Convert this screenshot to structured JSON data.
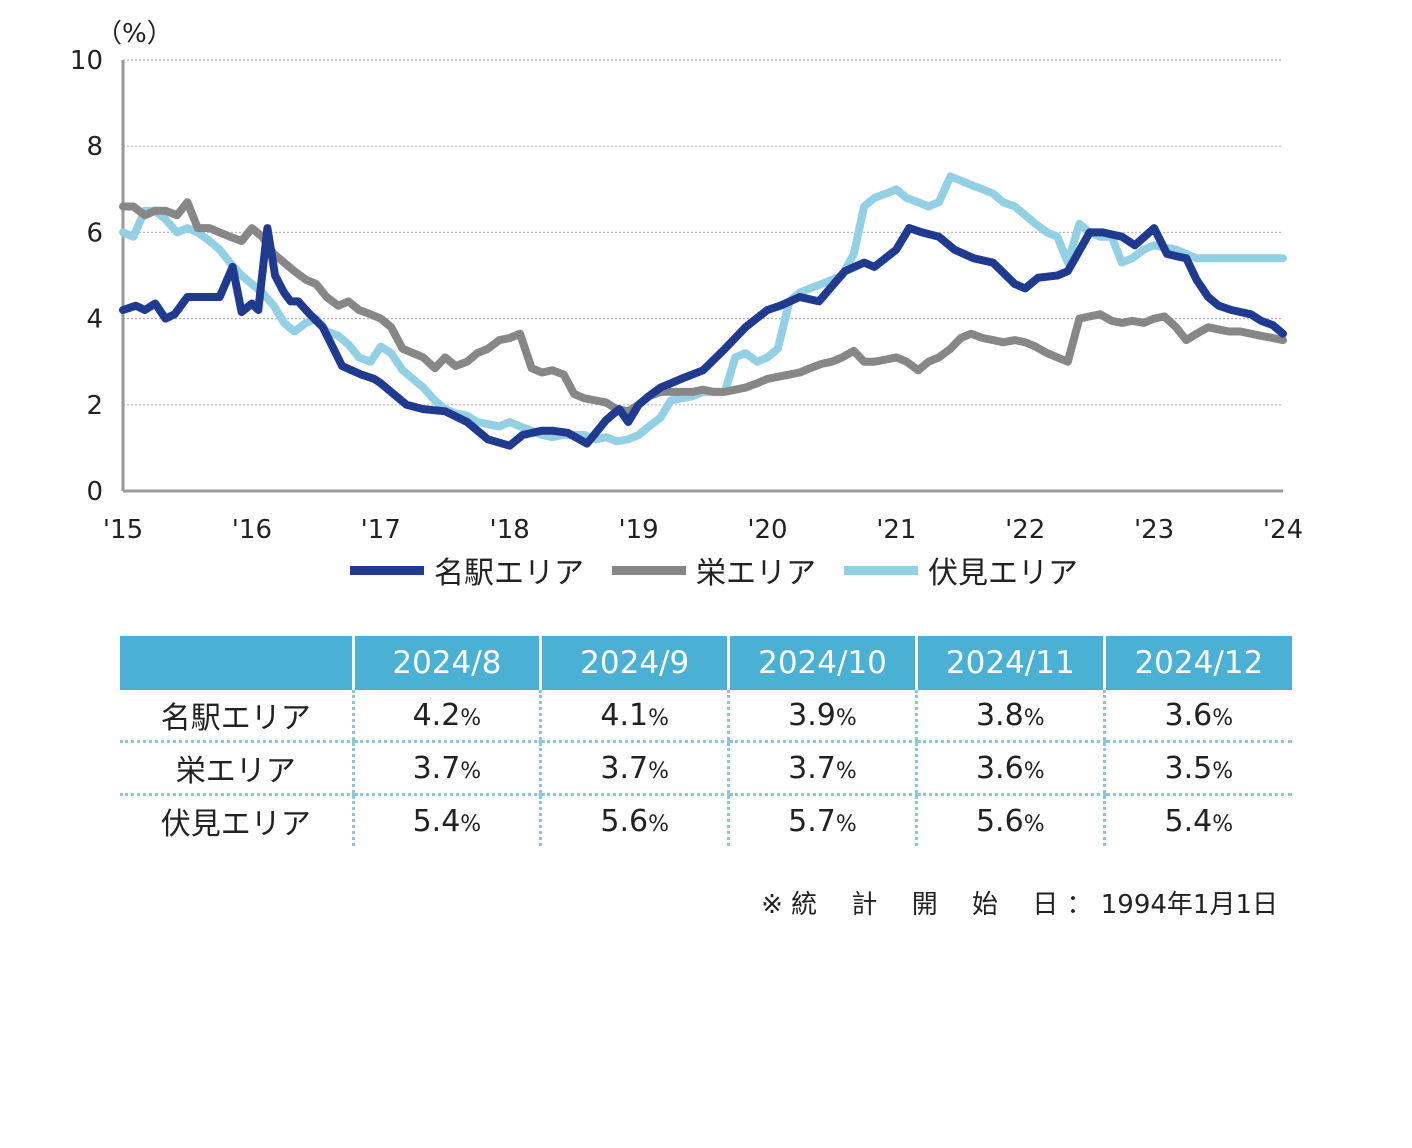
{
  "chart_data": {
    "type": "line",
    "ylabel": "（%）",
    "ylim": [
      0,
      10
    ],
    "yticks": [
      "0",
      "2",
      "4",
      "6",
      "8",
      "10"
    ],
    "xlim": [
      2015,
      2024
    ],
    "xtick_labels": [
      "'15",
      "'16",
      "'17",
      "'18",
      "'19",
      "'20",
      "'21",
      "'22",
      "'23",
      "'24"
    ],
    "grid": "horizontal dotted",
    "legend_position": "bottom-center",
    "series": [
      {
        "name": "名駅エリア",
        "color": "#1f3a8f",
        "x": [
          2015.0,
          2015.1,
          2015.17,
          2015.25,
          2015.33,
          2015.4,
          2015.5,
          2015.6,
          2015.75,
          2015.85,
          2015.92,
          2016.0,
          2016.05,
          2016.12,
          2016.18,
          2016.25,
          2016.3,
          2016.36,
          2016.45,
          2016.55,
          2016.7,
          2016.85,
          2016.95,
          2017.0,
          2017.08,
          2017.2,
          2017.33,
          2017.5,
          2017.67,
          2017.83,
          2018.0,
          2018.1,
          2018.25,
          2018.33,
          2018.45,
          2018.6,
          2018.75,
          2018.85,
          2018.92,
          2019.0,
          2019.08,
          2019.17,
          2019.25,
          2019.33,
          2019.5,
          2019.67,
          2019.83,
          2020.0,
          2020.1,
          2020.25,
          2020.4,
          2020.6,
          2020.75,
          2020.83,
          2021.0,
          2021.1,
          2021.2,
          2021.33,
          2021.45,
          2021.6,
          2021.75,
          2021.92,
          2022.0,
          2022.1,
          2022.25,
          2022.33,
          2022.5,
          2022.6,
          2022.75,
          2022.85,
          2023.0,
          2023.1,
          2023.17,
          2023.25,
          2023.33,
          2023.42,
          2023.5,
          2023.6,
          2023.75,
          2023.83,
          2023.92,
          2024.0
        ],
        "values": [
          4.2,
          4.3,
          4.2,
          4.35,
          4.0,
          4.1,
          4.5,
          4.5,
          4.5,
          5.2,
          4.15,
          4.35,
          4.2,
          6.1,
          5.0,
          4.6,
          4.4,
          4.4,
          4.1,
          3.8,
          2.9,
          2.7,
          2.6,
          2.5,
          2.3,
          2.0,
          1.9,
          1.85,
          1.6,
          1.2,
          1.05,
          1.3,
          1.4,
          1.4,
          1.35,
          1.1,
          1.65,
          1.9,
          1.6,
          2.0,
          2.2,
          2.4,
          2.5,
          2.6,
          2.8,
          3.3,
          3.8,
          4.2,
          4.3,
          4.5,
          4.4,
          5.1,
          5.3,
          5.2,
          5.6,
          6.1,
          6.0,
          5.9,
          5.6,
          5.4,
          5.3,
          4.8,
          4.7,
          4.95,
          5.0,
          5.1,
          6.0,
          6.0,
          5.9,
          5.7,
          6.1,
          5.5,
          5.45,
          5.4,
          4.9,
          4.5,
          4.3,
          4.2,
          4.1,
          3.95,
          3.85,
          3.65
        ]
      },
      {
        "name": "栄エリア",
        "color": "#878787",
        "x": [
          2015.0,
          2015.08,
          2015.17,
          2015.25,
          2015.33,
          2015.42,
          2015.5,
          2015.58,
          2015.67,
          2015.75,
          2015.83,
          2015.92,
          2016.0,
          2016.08,
          2016.17,
          2016.25,
          2016.33,
          2016.42,
          2016.5,
          2016.58,
          2016.67,
          2016.75,
          2016.83,
          2016.92,
          2017.0,
          2017.08,
          2017.17,
          2017.25,
          2017.33,
          2017.42,
          2017.5,
          2017.58,
          2017.67,
          2017.75,
          2017.83,
          2017.92,
          2018.0,
          2018.08,
          2018.17,
          2018.25,
          2018.33,
          2018.42,
          2018.5,
          2018.58,
          2018.67,
          2018.75,
          2018.83,
          2018.92,
          2019.0,
          2019.08,
          2019.17,
          2019.25,
          2019.33,
          2019.42,
          2019.5,
          2019.58,
          2019.67,
          2019.75,
          2019.83,
          2019.92,
          2020.0,
          2020.08,
          2020.17,
          2020.25,
          2020.33,
          2020.42,
          2020.5,
          2020.58,
          2020.67,
          2020.75,
          2020.83,
          2020.92,
          2021.0,
          2021.08,
          2021.17,
          2021.25,
          2021.33,
          2021.42,
          2021.5,
          2021.58,
          2021.67,
          2021.75,
          2021.83,
          2021.92,
          2022.0,
          2022.08,
          2022.17,
          2022.25,
          2022.33,
          2022.42,
          2022.5,
          2022.58,
          2022.67,
          2022.75,
          2022.83,
          2022.92,
          2023.0,
          2023.08,
          2023.17,
          2023.25,
          2023.33,
          2023.42,
          2023.5,
          2023.58,
          2023.67,
          2023.75,
          2023.83,
          2023.92,
          2024.0
        ],
        "values": [
          6.6,
          6.6,
          6.4,
          6.5,
          6.5,
          6.4,
          6.7,
          6.1,
          6.1,
          6.0,
          5.9,
          5.8,
          6.1,
          5.9,
          5.5,
          5.3,
          5.1,
          4.9,
          4.8,
          4.5,
          4.3,
          4.4,
          4.2,
          4.1,
          4.0,
          3.8,
          3.3,
          3.2,
          3.1,
          2.85,
          3.1,
          2.9,
          3.0,
          3.2,
          3.3,
          3.5,
          3.55,
          3.65,
          2.85,
          2.75,
          2.8,
          2.7,
          2.25,
          2.15,
          2.1,
          2.05,
          1.9,
          1.85,
          2.0,
          2.2,
          2.3,
          2.3,
          2.3,
          2.3,
          2.35,
          2.3,
          2.3,
          2.35,
          2.4,
          2.5,
          2.6,
          2.65,
          2.7,
          2.75,
          2.85,
          2.95,
          3.0,
          3.1,
          3.25,
          3.0,
          3.0,
          3.05,
          3.1,
          3.0,
          2.8,
          3.0,
          3.1,
          3.3,
          3.55,
          3.65,
          3.55,
          3.5,
          3.45,
          3.5,
          3.45,
          3.35,
          3.2,
          3.1,
          3.0,
          4.0,
          4.05,
          4.1,
          3.95,
          3.9,
          3.95,
          3.9,
          4.0,
          4.05,
          3.8,
          3.5,
          3.65,
          3.8,
          3.75,
          3.7,
          3.7,
          3.65,
          3.6,
          3.55,
          3.5
        ]
      },
      {
        "name": "伏見エリア",
        "color": "#94d0e3",
        "x": [
          2015.0,
          2015.08,
          2015.17,
          2015.25,
          2015.33,
          2015.42,
          2015.5,
          2015.58,
          2015.67,
          2015.75,
          2015.83,
          2015.92,
          2016.0,
          2016.08,
          2016.17,
          2016.25,
          2016.33,
          2016.42,
          2016.5,
          2016.58,
          2016.67,
          2016.75,
          2016.83,
          2016.92,
          2017.0,
          2017.08,
          2017.17,
          2017.25,
          2017.33,
          2017.42,
          2017.5,
          2017.58,
          2017.67,
          2017.75,
          2017.83,
          2017.92,
          2018.0,
          2018.08,
          2018.17,
          2018.25,
          2018.33,
          2018.42,
          2018.5,
          2018.58,
          2018.67,
          2018.75,
          2018.83,
          2018.92,
          2019.0,
          2019.08,
          2019.17,
          2019.25,
          2019.33,
          2019.42,
          2019.5,
          2019.58,
          2019.67,
          2019.75,
          2019.83,
          2019.92,
          2020.0,
          2020.08,
          2020.17,
          2020.25,
          2020.33,
          2020.42,
          2020.5,
          2020.58,
          2020.67,
          2020.75,
          2020.83,
          2020.92,
          2021.0,
          2021.08,
          2021.17,
          2021.25,
          2021.33,
          2021.42,
          2021.5,
          2021.58,
          2021.67,
          2021.75,
          2021.83,
          2021.92,
          2022.0,
          2022.08,
          2022.17,
          2022.25,
          2022.33,
          2022.42,
          2022.5,
          2022.58,
          2022.67,
          2022.75,
          2022.83,
          2022.92,
          2023.0,
          2023.08,
          2023.17,
          2023.25,
          2023.33,
          2023.42,
          2023.5,
          2023.58,
          2023.67,
          2023.75,
          2023.83,
          2023.92,
          2024.0
        ],
        "values": [
          6.0,
          5.9,
          6.5,
          6.5,
          6.3,
          6.0,
          6.1,
          6.0,
          5.8,
          5.6,
          5.3,
          5.0,
          4.8,
          4.6,
          4.3,
          3.9,
          3.7,
          3.9,
          4.0,
          3.7,
          3.6,
          3.4,
          3.1,
          3.0,
          3.35,
          3.2,
          2.8,
          2.6,
          2.4,
          2.1,
          1.9,
          1.8,
          1.75,
          1.6,
          1.55,
          1.5,
          1.6,
          1.5,
          1.4,
          1.3,
          1.25,
          1.3,
          1.3,
          1.3,
          1.2,
          1.25,
          1.15,
          1.2,
          1.3,
          1.5,
          1.7,
          2.1,
          2.15,
          2.2,
          2.3,
          2.3,
          2.3,
          3.1,
          3.2,
          3.0,
          3.1,
          3.3,
          4.4,
          4.6,
          4.7,
          4.8,
          4.9,
          5.0,
          5.5,
          6.6,
          6.8,
          6.9,
          7.0,
          6.8,
          6.7,
          6.6,
          6.7,
          7.3,
          7.2,
          7.1,
          7.0,
          6.9,
          6.7,
          6.6,
          6.4,
          6.2,
          6.0,
          5.9,
          5.3,
          6.2,
          6.0,
          5.9,
          5.9,
          5.3,
          5.4,
          5.6,
          5.7,
          5.65,
          5.6,
          5.5,
          5.4,
          5.4,
          5.4,
          5.4,
          5.4,
          5.4,
          5.4,
          5.4,
          5.4
        ]
      }
    ]
  },
  "table": {
    "headers": [
      "",
      "2024/8",
      "2024/9",
      "2024/10",
      "2024/11",
      "2024/12"
    ],
    "rows": [
      {
        "label": "名駅エリア",
        "values": [
          "4.2",
          "4.1",
          "3.9",
          "3.8",
          "3.6"
        ]
      },
      {
        "label": "栄エリア",
        "values": [
          "3.7",
          "3.7",
          "3.7",
          "3.6",
          "3.5"
        ]
      },
      {
        "label": "伏見エリア",
        "values": [
          "5.4",
          "5.6",
          "5.7",
          "5.6",
          "5.4"
        ]
      }
    ],
    "unit": "%"
  },
  "footnote": "※ 統　 計　 開　 始　 日 ： 1994年1月1日"
}
